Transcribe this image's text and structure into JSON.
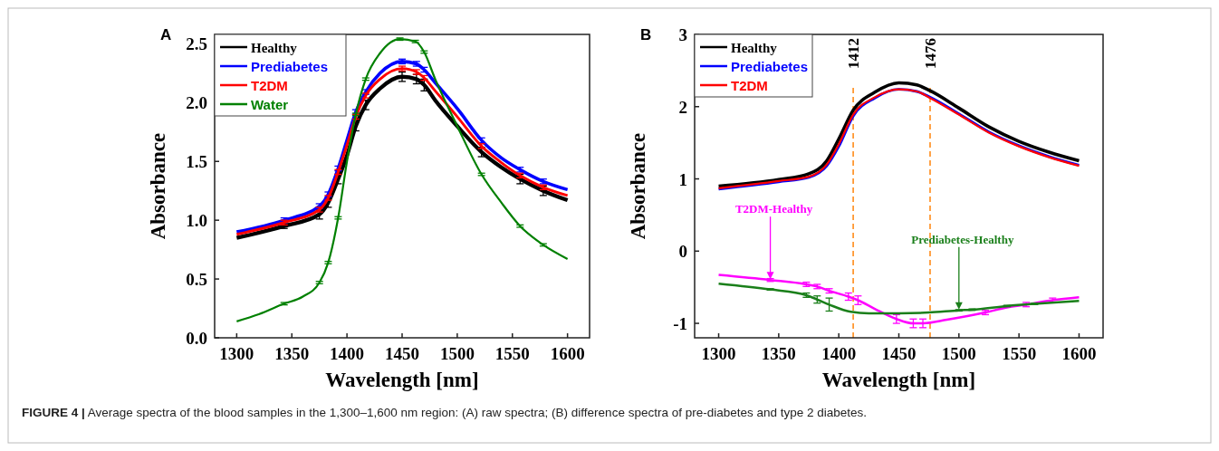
{
  "chart_data": [
    {
      "type": "line",
      "title": "A",
      "xlabel": "Wavelength [nm]",
      "ylabel": "Absorbance",
      "xlim": [
        1280,
        1620
      ],
      "xticks": [
        1300,
        1350,
        1400,
        1450,
        1500,
        1550,
        1600
      ],
      "ylim": [
        0,
        2.58
      ],
      "yticks": [
        {
          "value": 0,
          "label": "0.0"
        },
        0.5,
        {
          "value": 1,
          "label": "1.0"
        },
        1.5,
        {
          "value": 2,
          "label": "2.0"
        },
        2.5
      ],
      "legend": "top left",
      "grid": false,
      "marker": "none",
      "line_style": "solid",
      "series": [
        {
          "name": "Healthy",
          "color": "#000000",
          "x": [
            1300,
            1343,
            1375,
            1383,
            1392,
            1400,
            1408,
            1417,
            1430,
            1450,
            1463,
            1470,
            1480,
            1500,
            1522,
            1540,
            1557,
            1578,
            1600
          ],
          "values": [
            0.85,
            0.95,
            1.05,
            1.15,
            1.35,
            1.55,
            1.8,
            1.98,
            2.12,
            2.22,
            2.2,
            2.15,
            2.02,
            1.8,
            1.58,
            1.45,
            1.35,
            1.25,
            1.17
          ],
          "errors": [
            null,
            0.02,
            0.04,
            0.04,
            0.04,
            null,
            0.04,
            0.04,
            null,
            0.04,
            0.04,
            0.05,
            null,
            null,
            0.04,
            null,
            0.04,
            0.04,
            null
          ]
        },
        {
          "name": "Prediabetes",
          "color": "#0000ff",
          "x": [
            1300,
            1343,
            1375,
            1383,
            1392,
            1400,
            1408,
            1417,
            1430,
            1450,
            1463,
            1470,
            1480,
            1500,
            1522,
            1540,
            1557,
            1578,
            1600
          ],
          "values": [
            0.9,
            1.0,
            1.12,
            1.22,
            1.44,
            1.68,
            1.92,
            2.09,
            2.25,
            2.35,
            2.33,
            2.28,
            2.17,
            1.95,
            1.68,
            1.53,
            1.43,
            1.33,
            1.26
          ],
          "errors": [
            null,
            0.02,
            0.02,
            0.02,
            0.02,
            null,
            0.02,
            0.02,
            null,
            0.02,
            0.02,
            0.02,
            null,
            null,
            0.02,
            null,
            0.02,
            0.02,
            null
          ]
        },
        {
          "name": "T2DM",
          "color": "#ff0000",
          "x": [
            1300,
            1343,
            1375,
            1383,
            1392,
            1400,
            1408,
            1417,
            1430,
            1450,
            1463,
            1470,
            1480,
            1500,
            1522,
            1540,
            1557,
            1578,
            1600
          ],
          "values": [
            0.88,
            0.98,
            1.09,
            1.19,
            1.41,
            1.64,
            1.88,
            2.06,
            2.2,
            2.29,
            2.26,
            2.21,
            2.1,
            1.88,
            1.63,
            1.49,
            1.38,
            1.28,
            1.21
          ],
          "errors": [
            null,
            0.02,
            0.02,
            0.02,
            0.02,
            null,
            0.02,
            0.02,
            null,
            0.02,
            0.02,
            0.02,
            null,
            null,
            0.02,
            null,
            0.02,
            0.02,
            null
          ]
        },
        {
          "name": "Water",
          "color": "#008000",
          "x": [
            1300,
            1320,
            1343,
            1360,
            1375,
            1383,
            1392,
            1400,
            1408,
            1417,
            1430,
            1448,
            1462,
            1470,
            1480,
            1500,
            1522,
            1540,
            1557,
            1578,
            1600
          ],
          "values": [
            0.14,
            0.2,
            0.29,
            0.35,
            0.47,
            0.64,
            1.02,
            1.5,
            1.9,
            2.2,
            2.42,
            2.54,
            2.52,
            2.43,
            2.2,
            1.8,
            1.39,
            1.15,
            0.95,
            0.79,
            0.67
          ],
          "errors": [
            null,
            null,
            0.01,
            null,
            0.01,
            0.01,
            0.01,
            null,
            0.01,
            0.01,
            null,
            0.01,
            0.01,
            0.01,
            null,
            null,
            0.01,
            null,
            0.01,
            0.01,
            null
          ]
        }
      ],
      "annotations": [
        "FIGURE 4 | Average spectra of the blood samples in the 1,300–1,600 nm region: (A) raw spectra; (B) difference spectra of pre-diabetes and type 2 diabetes."
      ]
    },
    {
      "type": "line",
      "title": "B",
      "xlabel": "Wavelength [nm]",
      "ylabel": "Absorbance",
      "xlim": [
        1280,
        1620
      ],
      "xticks": [
        1300,
        1350,
        1400,
        1450,
        1500,
        1550,
        1600
      ],
      "ylim": [
        -1.2,
        3
      ],
      "yticks": [
        -1,
        0,
        1,
        2,
        3
      ],
      "legend": "top left",
      "grid": false,
      "marker": "none",
      "line_style": "solid",
      "series": [
        {
          "name": "Healthy",
          "color": "#000000",
          "x": [
            1300,
            1350,
            1375,
            1390,
            1400,
            1412,
            1430,
            1450,
            1465,
            1476,
            1500,
            1525,
            1550,
            1575,
            1600
          ],
          "values": [
            0.9,
            0.99,
            1.07,
            1.25,
            1.55,
            1.95,
            2.2,
            2.33,
            2.3,
            2.22,
            1.98,
            1.72,
            1.52,
            1.37,
            1.25
          ]
        },
        {
          "name": "Prediabetes",
          "color": "#0000ff",
          "x": [
            1300,
            1350,
            1375,
            1390,
            1400,
            1412,
            1430,
            1450,
            1465,
            1476,
            1500,
            1525,
            1550,
            1575,
            1600
          ],
          "values": [
            0.86,
            0.96,
            1.02,
            1.18,
            1.45,
            1.87,
            2.12,
            2.24,
            2.21,
            2.13,
            1.9,
            1.65,
            1.46,
            1.31,
            1.19
          ]
        },
        {
          "name": "T2DM",
          "color": "#ff0000",
          "x": [
            1300,
            1350,
            1375,
            1390,
            1400,
            1412,
            1430,
            1450,
            1465,
            1476,
            1500,
            1525,
            1550,
            1575,
            1600
          ],
          "values": [
            0.87,
            0.97,
            1.03,
            1.2,
            1.48,
            1.89,
            2.13,
            2.24,
            2.21,
            2.12,
            1.89,
            1.64,
            1.45,
            1.3,
            1.18
          ]
        },
        {
          "color": "#ff00ff",
          "x": [
            1300,
            1343,
            1373,
            1382,
            1392,
            1408,
            1416,
            1430,
            1448,
            1462,
            1470,
            1490,
            1522,
            1540,
            1556,
            1578,
            1600
          ],
          "values": [
            -0.33,
            -0.4,
            -0.46,
            -0.49,
            -0.55,
            -0.63,
            -0.68,
            -0.8,
            -0.94,
            -1.0,
            -1.0,
            -0.95,
            -0.85,
            -0.78,
            -0.74,
            -0.68,
            -0.64
          ],
          "errors": [
            null,
            0.02,
            0.03,
            0.03,
            0.03,
            0.05,
            0.06,
            null,
            0.06,
            0.06,
            0.06,
            null,
            0.03,
            null,
            0.03,
            0.03,
            null
          ]
        },
        {
          "color": "#1a7f1a",
          "x": [
            1300,
            1343,
            1373,
            1382,
            1392,
            1410,
            1425,
            1450,
            1475,
            1500,
            1511,
            1540,
            1563,
            1600
          ],
          "values": [
            -0.45,
            -0.53,
            -0.61,
            -0.67,
            -0.74,
            -0.84,
            -0.86,
            -0.86,
            -0.85,
            -0.82,
            -0.81,
            -0.76,
            -0.73,
            -0.69
          ],
          "errors": [
            null,
            0.01,
            0.03,
            0.05,
            0.09,
            null,
            null,
            null,
            null,
            0.01,
            0.01,
            0.01,
            0.01,
            null
          ]
        }
      ],
      "ref_lines": [
        {
          "axis": "x",
          "value": 1412,
          "label": "1412",
          "color": "#ff8c1a",
          "line_style": "dashed"
        },
        {
          "axis": "x",
          "value": 1476,
          "label": "1476",
          "color": "#ff8c1a",
          "line_style": "dashed"
        }
      ],
      "annotations": [
        {
          "text": "T2DM-Healthy",
          "x": 1343,
          "y": -0.4
        },
        {
          "text": "Prediabetes-Healthy",
          "x": 1500,
          "y": -0.82
        }
      ]
    }
  ]
}
